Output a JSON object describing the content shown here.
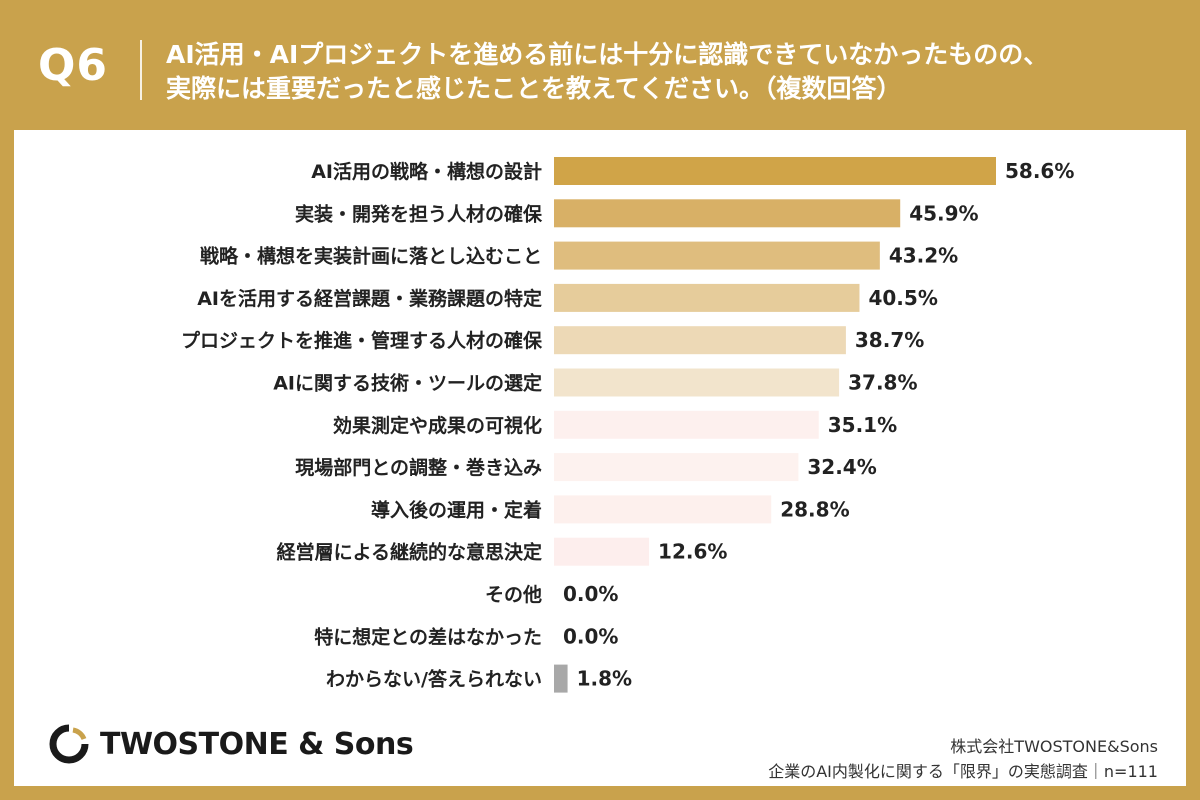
{
  "header": {
    "question_id": "Q6",
    "question_line1": "AI活用・AIプロジェクトを進める前には十分に認識できていなかったものの、",
    "question_line2": "実際には重要だったと感じたことを教えてください。（複数回答）"
  },
  "chart_data": {
    "type": "bar",
    "orientation": "horizontal",
    "categories": [
      "AI活用の戦略・構想の設計",
      "実装・開発を担う人材の確保",
      "戦略・構想を実装計画に落とし込むこと",
      "AIを活用する経営課題・業務課題の特定",
      "プロジェクトを推進・管理する人材の確保",
      "AIに関する技術・ツールの選定",
      "効果測定や成果の可視化",
      "現場部門との調整・巻き込み",
      "導入後の運用・定着",
      "経営層による継続的な意思決定",
      "その他",
      "特に想定との差はなかった",
      "わからない/答えられない"
    ],
    "values": [
      58.6,
      45.9,
      43.2,
      40.5,
      38.7,
      37.8,
      35.1,
      32.4,
      28.8,
      12.6,
      0.0,
      0.0,
      1.8
    ],
    "value_labels": [
      "58.6%",
      "45.9%",
      "43.2%",
      "40.5%",
      "38.7%",
      "37.8%",
      "35.1%",
      "32.4%",
      "28.8%",
      "12.6%",
      "0.0%",
      "0.0%",
      "1.8%"
    ],
    "unit": "%",
    "colors": [
      "#d0a448",
      "#d8b066",
      "#dfbd7e",
      "#e6cc9b",
      "#edd9b6",
      "#f2e4cc",
      "#fdf0ee",
      "#fdf2ef",
      "#fdf0ed",
      "#fdeeed",
      "#fdeeed",
      "#fdeeed",
      "#a8a8a8"
    ],
    "xlim": [
      0,
      58.6
    ],
    "grid": false,
    "legend": "none"
  },
  "logo": {
    "text": "TWOSTONE & Sons",
    "icon": "twostone-logo-icon"
  },
  "footer": {
    "company": "株式会社TWOSTONE&Sons",
    "survey": "企業のAI内製化に関する「限界」の実態調査｜n=111"
  }
}
